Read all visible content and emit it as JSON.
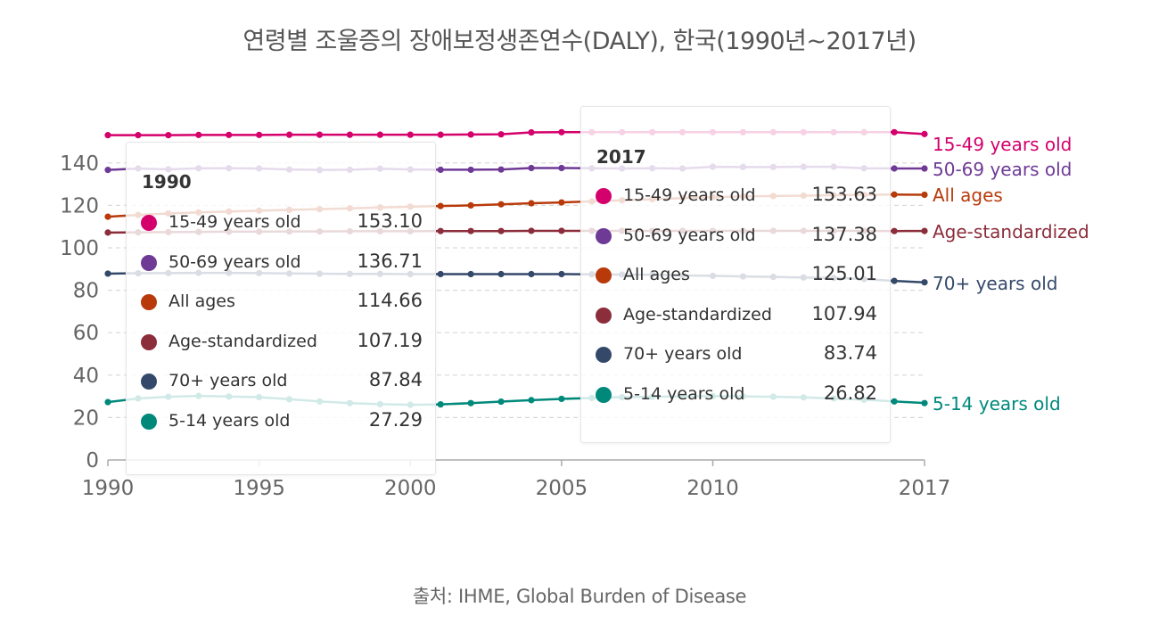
{
  "title": "연령별 조울증의 장애보정생존연수(DALY), 한국(1990년~2017년)",
  "source": "출처: IHME, Global Burden of Disease",
  "chart_data": {
    "type": "line",
    "title": "연령별 조울증의 장애보정생존연수(DALY), 한국(1990년~2017년)",
    "xlabel": "",
    "ylabel": "",
    "xlim": [
      1990,
      2017
    ],
    "ylim": [
      0,
      150
    ],
    "y_ticks": [
      0,
      20,
      40,
      60,
      80,
      100,
      120,
      140
    ],
    "x_ticks": [
      1990,
      1995,
      2000,
      2005,
      2010,
      2017
    ],
    "x": [
      1990,
      1991,
      1992,
      1993,
      1994,
      1995,
      1996,
      1997,
      1998,
      1999,
      2000,
      2001,
      2002,
      2003,
      2004,
      2005,
      2006,
      2007,
      2008,
      2009,
      2010,
      2011,
      2012,
      2013,
      2014,
      2015,
      2016,
      2017
    ],
    "series": [
      {
        "name": "15-49 years old",
        "color": "#d4006c",
        "values": [
          153.1,
          153.1,
          153.1,
          153.2,
          153.2,
          153.2,
          153.3,
          153.3,
          153.3,
          153.3,
          153.3,
          153.3,
          153.4,
          153.5,
          154.4,
          154.5,
          154.5,
          154.5,
          154.5,
          154.5,
          154.5,
          154.5,
          154.5,
          154.5,
          154.5,
          154.5,
          154.5,
          153.63
        ]
      },
      {
        "name": "50-69 years old",
        "color": "#6e3a96",
        "values": [
          136.71,
          137.4,
          137.0,
          137.5,
          137.5,
          137.4,
          136.9,
          136.7,
          136.8,
          137.3,
          136.9,
          136.8,
          136.8,
          136.9,
          137.6,
          137.6,
          137.5,
          137.4,
          137.5,
          137.4,
          138.2,
          138.1,
          138.1,
          138.2,
          138.2,
          137.5,
          137.4,
          137.38
        ]
      },
      {
        "name": "All ages",
        "color": "#b83a0a",
        "values": [
          114.66,
          115.5,
          116.2,
          116.7,
          117.1,
          117.5,
          117.9,
          118.2,
          118.6,
          119.0,
          119.4,
          119.7,
          120.0,
          120.5,
          121.0,
          121.4,
          121.9,
          122.4,
          122.9,
          123.4,
          123.9,
          124.2,
          124.4,
          124.6,
          124.8,
          125.0,
          125.1,
          125.01
        ]
      },
      {
        "name": "Age-standardized",
        "color": "#8c2d3b",
        "values": [
          107.19,
          107.3,
          107.4,
          107.5,
          107.6,
          107.6,
          107.7,
          107.7,
          107.8,
          107.8,
          107.8,
          107.9,
          107.9,
          107.9,
          108.0,
          108.0,
          108.0,
          108.0,
          108.0,
          108.0,
          108.0,
          108.0,
          108.0,
          108.0,
          108.0,
          108.0,
          107.9,
          107.94
        ]
      },
      {
        "name": "70+ years old",
        "color": "#34496a",
        "values": [
          87.84,
          88.0,
          88.1,
          88.2,
          88.2,
          88.1,
          87.9,
          87.8,
          87.7,
          87.7,
          87.6,
          87.6,
          87.6,
          87.6,
          87.6,
          87.6,
          87.5,
          87.4,
          87.3,
          87.0,
          86.8,
          86.5,
          86.3,
          86.0,
          85.8,
          85.3,
          84.4,
          83.74
        ]
      },
      {
        "name": "5-14 years old",
        "color": "#00897b",
        "values": [
          27.29,
          29.0,
          29.8,
          30.2,
          29.9,
          29.6,
          28.6,
          27.6,
          26.8,
          26.3,
          26.0,
          26.2,
          26.8,
          27.5,
          28.2,
          28.8,
          29.2,
          29.6,
          29.8,
          30.0,
          30.1,
          30.0,
          29.8,
          29.5,
          29.0,
          28.4,
          27.6,
          26.82
        ]
      }
    ],
    "end_labels": [
      "15-49 years old",
      "50-69 years old",
      "All ages",
      "Age-standardized",
      "70+ years old",
      "5-14 years old"
    ]
  },
  "tooltips": [
    {
      "year": "1990",
      "rows": [
        {
          "label": "15-49 years old",
          "value": "153.10",
          "color": "#d4006c"
        },
        {
          "label": "50-69 years old",
          "value": "136.71",
          "color": "#6e3a96"
        },
        {
          "label": "All ages",
          "value": "114.66",
          "color": "#b83a0a"
        },
        {
          "label": "Age-standardized",
          "value": "107.19",
          "color": "#8c2d3b"
        },
        {
          "label": "70+ years old",
          "value": "87.84",
          "color": "#34496a"
        },
        {
          "label": "5-14 years old",
          "value": "27.29",
          "color": "#00897b"
        }
      ]
    },
    {
      "year": "2017",
      "rows": [
        {
          "label": "15-49 years old",
          "value": "153.63",
          "color": "#d4006c"
        },
        {
          "label": "50-69 years old",
          "value": "137.38",
          "color": "#6e3a96"
        },
        {
          "label": "All ages",
          "value": "125.01",
          "color": "#b83a0a"
        },
        {
          "label": "Age-standardized",
          "value": "107.94",
          "color": "#8c2d3b"
        },
        {
          "label": "70+ years old",
          "value": "83.74",
          "color": "#34496a"
        },
        {
          "label": "5-14 years old",
          "value": "26.82",
          "color": "#00897b"
        }
      ]
    }
  ]
}
